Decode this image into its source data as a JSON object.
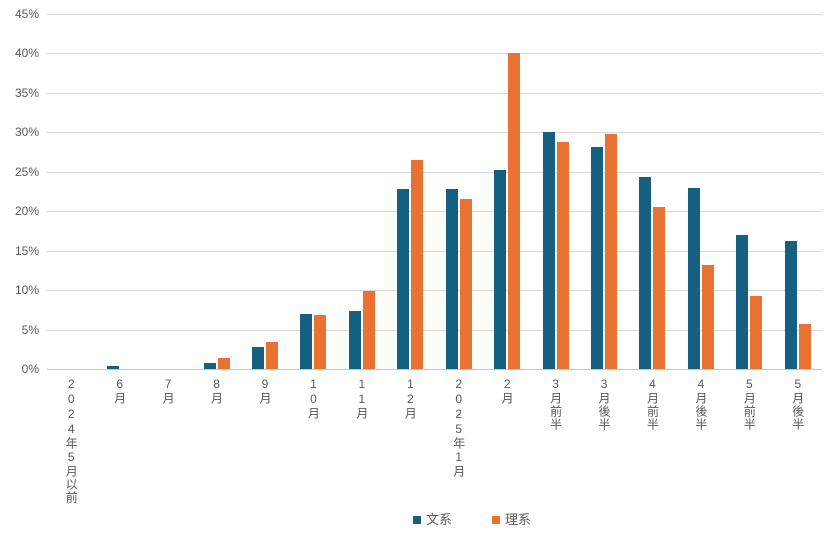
{
  "chart_data": {
    "type": "bar",
    "title": "",
    "xlabel": "",
    "ylabel": "",
    "ylim": [
      0,
      45
    ],
    "ytick_step": 5,
    "ytick_labels": [
      "0%",
      "5%",
      "10%",
      "15%",
      "20%",
      "25%",
      "30%",
      "35%",
      "40%",
      "45%"
    ],
    "grid": true,
    "legend_position": "bottom",
    "categories": [
      "2024年5月以前",
      "6月",
      "7月",
      "8月",
      "9月",
      "10月",
      "11月",
      "12月",
      "2025年1月",
      "2月",
      "3月前半",
      "3月後半",
      "4月前半",
      "4月後半",
      "5月前半",
      "5月後半"
    ],
    "series": [
      {
        "name": "文系",
        "color": "#156082",
        "values": [
          0,
          0.4,
          0,
          0.8,
          2.8,
          7.0,
          7.3,
          22.8,
          22.8,
          25.2,
          30.1,
          28.1,
          24.3,
          22.9,
          17.0,
          16.2
        ]
      },
      {
        "name": "理系",
        "color": "#E97132",
        "values": [
          0,
          0,
          0,
          1.4,
          3.4,
          6.8,
          9.9,
          26.5,
          21.6,
          40.1,
          28.8,
          29.8,
          20.5,
          13.2,
          9.3,
          5.7
        ]
      }
    ]
  },
  "colors": {
    "background": "#FFFFFF",
    "gridline": "#D9D9D9",
    "axis_line": "#C6C6C6",
    "tick_text": "#595959"
  }
}
